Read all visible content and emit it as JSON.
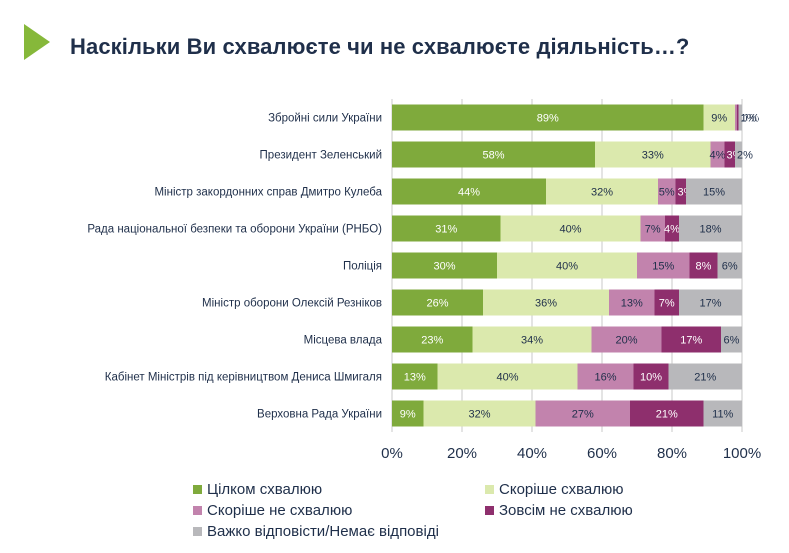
{
  "title": "Наскільки Ви схвалюєте чи не схвалюєте діяльність…?",
  "colors": {
    "accent": "#7faa3c",
    "title_text": "#1f2f4a",
    "grid": "#c8c8c8"
  },
  "chart_data": {
    "type": "bar",
    "orientation": "horizontal",
    "stacked": true,
    "categories": [
      "Збройні сили України",
      "Президент Зеленський",
      "Міністр закордонних справ Дмитро Кулеба",
      "Рада національної безпеки та оборони України (РНБО)",
      "Поліція",
      "Міністр оборони Олексій Резніков",
      "Місцева влада",
      "Кабінет Міністрів під керівництвом Дениса Шмигаля",
      "Верховна Рада України"
    ],
    "series": [
      {
        "name": "Цілком схвалюю",
        "color": "#7faa3c",
        "values": [
          89,
          58,
          44,
          31,
          30,
          26,
          23,
          13,
          9
        ],
        "labels": [
          "89%",
          "58%",
          "44%",
          "31%",
          "30%",
          "26%",
          "23%",
          "13%",
          "9%"
        ]
      },
      {
        "name": "Скоріше схвалюю",
        "color": "#dbe9ad",
        "values": [
          9,
          33,
          32,
          40,
          40,
          36,
          34,
          40,
          32
        ],
        "labels": [
          "9%",
          "33%",
          "32%",
          "40%",
          "40%",
          "36%",
          "34%",
          "40%",
          "32%"
        ]
      },
      {
        "name": "Скоріше не схвалюю",
        "color": "#c283ad",
        "values": [
          0.5,
          4,
          5,
          7,
          15,
          13,
          20,
          16,
          27
        ],
        "labels": [
          "<1%",
          "4%",
          "5%",
          "7%",
          "15%",
          "13%",
          "20%",
          "16%",
          "27%"
        ]
      },
      {
        "name": "Зовсім не схвалюю",
        "color": "#8e2f6d",
        "values": [
          0.5,
          3,
          3,
          4,
          8,
          7,
          17,
          10,
          21
        ],
        "labels": [
          "<1%",
          "3%",
          "3%",
          "4%",
          "8%",
          "7%",
          "17%",
          "10%",
          "21%"
        ]
      },
      {
        "name": "Важко відповісти/Немає відповіді",
        "color": "#b8b8bb",
        "values": [
          1,
          2,
          15,
          18,
          6,
          17,
          6,
          21,
          11
        ],
        "labels": [
          "1%",
          "2%",
          "15%",
          "18%",
          "6%",
          "17%",
          "6%",
          "21%",
          "11%"
        ]
      }
    ],
    "xlim": [
      0,
      100
    ],
    "xticks": [
      "0%",
      "20%",
      "40%",
      "60%",
      "80%",
      "100%"
    ],
    "grid": true,
    "legend_position": "bottom"
  }
}
